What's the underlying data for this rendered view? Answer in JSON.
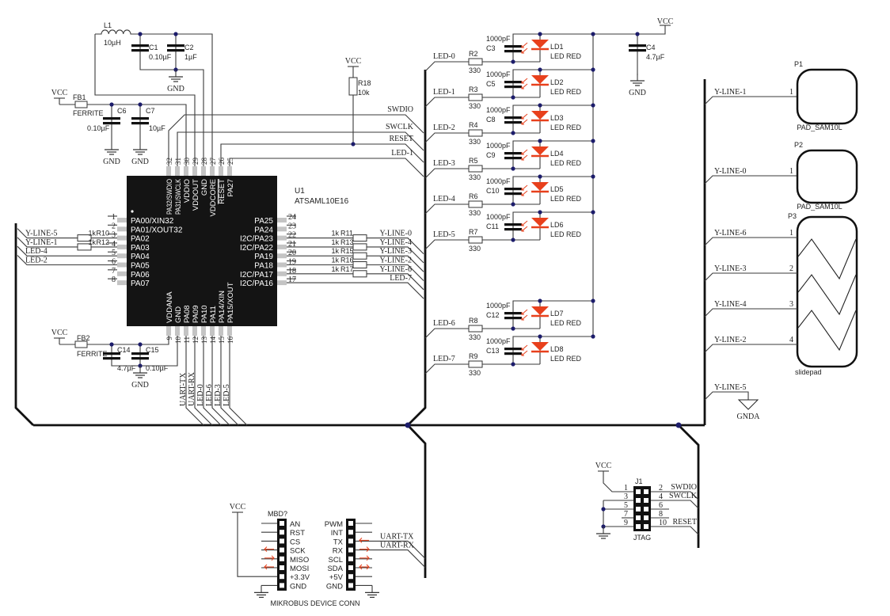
{
  "power": {
    "vcc": "VCC",
    "gnd": "GND",
    "gnda": "GNDA"
  },
  "mcu": {
    "ref": "U1",
    "part": "ATSAML10E16",
    "left_pins": [
      {
        "num": "1",
        "name": "PA00/XIN32"
      },
      {
        "num": "2",
        "name": "PA01/XOUT32"
      },
      {
        "num": "3",
        "name": "PA02"
      },
      {
        "num": "4",
        "name": "PA03"
      },
      {
        "num": "5",
        "name": "PA04"
      },
      {
        "num": "6",
        "name": "PA05"
      },
      {
        "num": "7",
        "name": "PA06"
      },
      {
        "num": "8",
        "name": "PA07"
      }
    ],
    "right_pins": [
      {
        "num": "24",
        "name": "PA25"
      },
      {
        "num": "23",
        "name": "PA24"
      },
      {
        "num": "22",
        "name": "I2C/PA23"
      },
      {
        "num": "21",
        "name": "I2C/PA22"
      },
      {
        "num": "20",
        "name": "PA19"
      },
      {
        "num": "19",
        "name": "PA18"
      },
      {
        "num": "18",
        "name": "I2C/PA17"
      },
      {
        "num": "17",
        "name": "I2C/PA16"
      }
    ],
    "top_pins": [
      {
        "num": "32",
        "name": "PA32/SWDIO"
      },
      {
        "num": "31",
        "name": "PA31/SWCLK"
      },
      {
        "num": "30",
        "name": "VDDIO"
      },
      {
        "num": "29",
        "name": "VDDOUT"
      },
      {
        "num": "28",
        "name": "GND"
      },
      {
        "num": "27",
        "name": "VDDCORE"
      },
      {
        "num": "26",
        "name": "RESET"
      },
      {
        "num": "25",
        "name": "PA27"
      }
    ],
    "bottom_pins": [
      {
        "num": "9",
        "name": "VDDANA"
      },
      {
        "num": "10",
        "name": "GND"
      },
      {
        "num": "11",
        "name": "PA08"
      },
      {
        "num": "12",
        "name": "PA09"
      },
      {
        "num": "13",
        "name": "PA10"
      },
      {
        "num": "14",
        "name": "PA11"
      },
      {
        "num": "15",
        "name": "PA14/XIN"
      },
      {
        "num": "16",
        "name": "PA15/XOUT"
      }
    ]
  },
  "components": {
    "L1": {
      "ref": "L1",
      "value": "10µH"
    },
    "C1": {
      "ref": "C1",
      "value": "0.10µF"
    },
    "C2": {
      "ref": "C2",
      "value": "1µF"
    },
    "FB1": {
      "ref": "FB1",
      "value": "FERRITE"
    },
    "C6": {
      "ref": "C6",
      "value": "0.10µF"
    },
    "C7": {
      "ref": "C7",
      "value": "10µF"
    },
    "R18": {
      "ref": "R18",
      "value": "10k"
    },
    "FB2": {
      "ref": "FB2",
      "value": "FERRITE"
    },
    "C14": {
      "ref": "C14",
      "value": "4.7µF"
    },
    "C15": {
      "ref": "C15",
      "value": "0.10µF"
    },
    "C4": {
      "ref": "C4",
      "value": "4.7µF"
    }
  },
  "mcu_nets": {
    "left": [
      {
        "net": "Y-LINE-5",
        "res": "R10",
        "value": "1k"
      },
      {
        "net": "Y-LINE-1",
        "res": "R12",
        "value": "1k"
      },
      {
        "net": "LED-4"
      },
      {
        "net": "LED-2"
      }
    ],
    "right": [
      {
        "net": "Y-LINE-0",
        "res": "R11",
        "value": "1k"
      },
      {
        "net": "Y-LINE-4",
        "res": "R13",
        "value": "1k"
      },
      {
        "net": "Y-LINE-3",
        "res": "R15",
        "value": "1k"
      },
      {
        "net": "Y-LINE-2",
        "res": "R16",
        "value": "1k"
      },
      {
        "net": "Y-LINE-6",
        "res": "R17",
        "value": "1k"
      },
      {
        "net": "LED-7"
      }
    ],
    "top": [
      "SWDIO",
      "SWCLK",
      "RESET",
      "LED-1"
    ],
    "bottom": [
      "UART-TX",
      "UART-RX",
      "LED-0",
      "LED-6",
      "LED-3",
      "LED-5"
    ]
  },
  "leds": [
    {
      "net": "LED-0",
      "res": "R2",
      "res_value": "330",
      "cap": "C3",
      "cap_value": "1000pF",
      "ref": "LD1",
      "value": "LED RED"
    },
    {
      "net": "LED-1",
      "res": "R3",
      "res_value": "330",
      "cap": "C5",
      "cap_value": "1000pF",
      "ref": "LD2",
      "value": "LED RED"
    },
    {
      "net": "LED-2",
      "res": "R4",
      "res_value": "330",
      "cap": "C8",
      "cap_value": "1000pF",
      "ref": "LD3",
      "value": "LED RED"
    },
    {
      "net": "LED-3",
      "res": "R5",
      "res_value": "330",
      "cap": "C9",
      "cap_value": "1000pF",
      "ref": "LD4",
      "value": "LED RED"
    },
    {
      "net": "LED-4",
      "res": "R6",
      "res_value": "330",
      "cap": "C10",
      "cap_value": "1000pF",
      "ref": "LD5",
      "value": "LED RED"
    },
    {
      "net": "LED-5",
      "res": "R7",
      "res_value": "330",
      "cap": "C11",
      "cap_value": "1000pF",
      "ref": "LD6",
      "value": "LED RED"
    },
    {
      "net": "LED-6",
      "res": "R8",
      "res_value": "330",
      "cap": "C12",
      "cap_value": "1000pF",
      "ref": "LD7",
      "value": "LED RED"
    },
    {
      "net": "LED-7",
      "res": "R9",
      "res_value": "330",
      "cap": "C13",
      "cap_value": "1000pF",
      "ref": "LD8",
      "value": "LED RED"
    }
  ],
  "led_color": "#e8401c",
  "touch": {
    "pads": [
      {
        "ref": "P1",
        "value": "PAD_SAM10L",
        "net": "Y-LINE-1",
        "pin": "1"
      },
      {
        "ref": "P2",
        "value": "PAD_SAM10L",
        "net": "Y-LINE-0",
        "pin": "1"
      }
    ],
    "slider": {
      "ref": "P3",
      "value": "slidepad",
      "pins": [
        {
          "net": "Y-LINE-6",
          "pin": "1"
        },
        {
          "net": "Y-LINE-3",
          "pin": "2"
        },
        {
          "net": "Y-LINE-4",
          "pin": "3"
        },
        {
          "net": "Y-LINE-2",
          "pin": "4"
        }
      ]
    },
    "ground_net": "Y-LINE-5"
  },
  "mikrobus": {
    "ref": "MBD?",
    "title": "MIKROBUS DEVICE CONN",
    "left": [
      "AN",
      "RST",
      "CS",
      "SCK",
      "MISO",
      "MOSI",
      "+3.3V",
      "GND"
    ],
    "right": [
      "PWM",
      "INT",
      "TX",
      "RX",
      "SCL",
      "SDA",
      "+5V",
      "GND"
    ],
    "left_arrows": {
      "SCK": "left",
      "MISO": "right",
      "MOSI": "left"
    },
    "right_arrows": {
      "TX": "left",
      "RX": "right",
      "SCL": "right",
      "SDA": "both"
    },
    "nets": [
      "UART-TX",
      "UART-RX"
    ]
  },
  "jtag": {
    "ref": "J1",
    "label": "JTAG",
    "left_pins": [
      "1",
      "3",
      "5",
      "7",
      "9"
    ],
    "right_pins": [
      "2",
      "4",
      "6",
      "8",
      "10"
    ],
    "nets": {
      "pin2": "SWDIO",
      "pin4": "SWCLK",
      "pin10": "RESET"
    }
  }
}
